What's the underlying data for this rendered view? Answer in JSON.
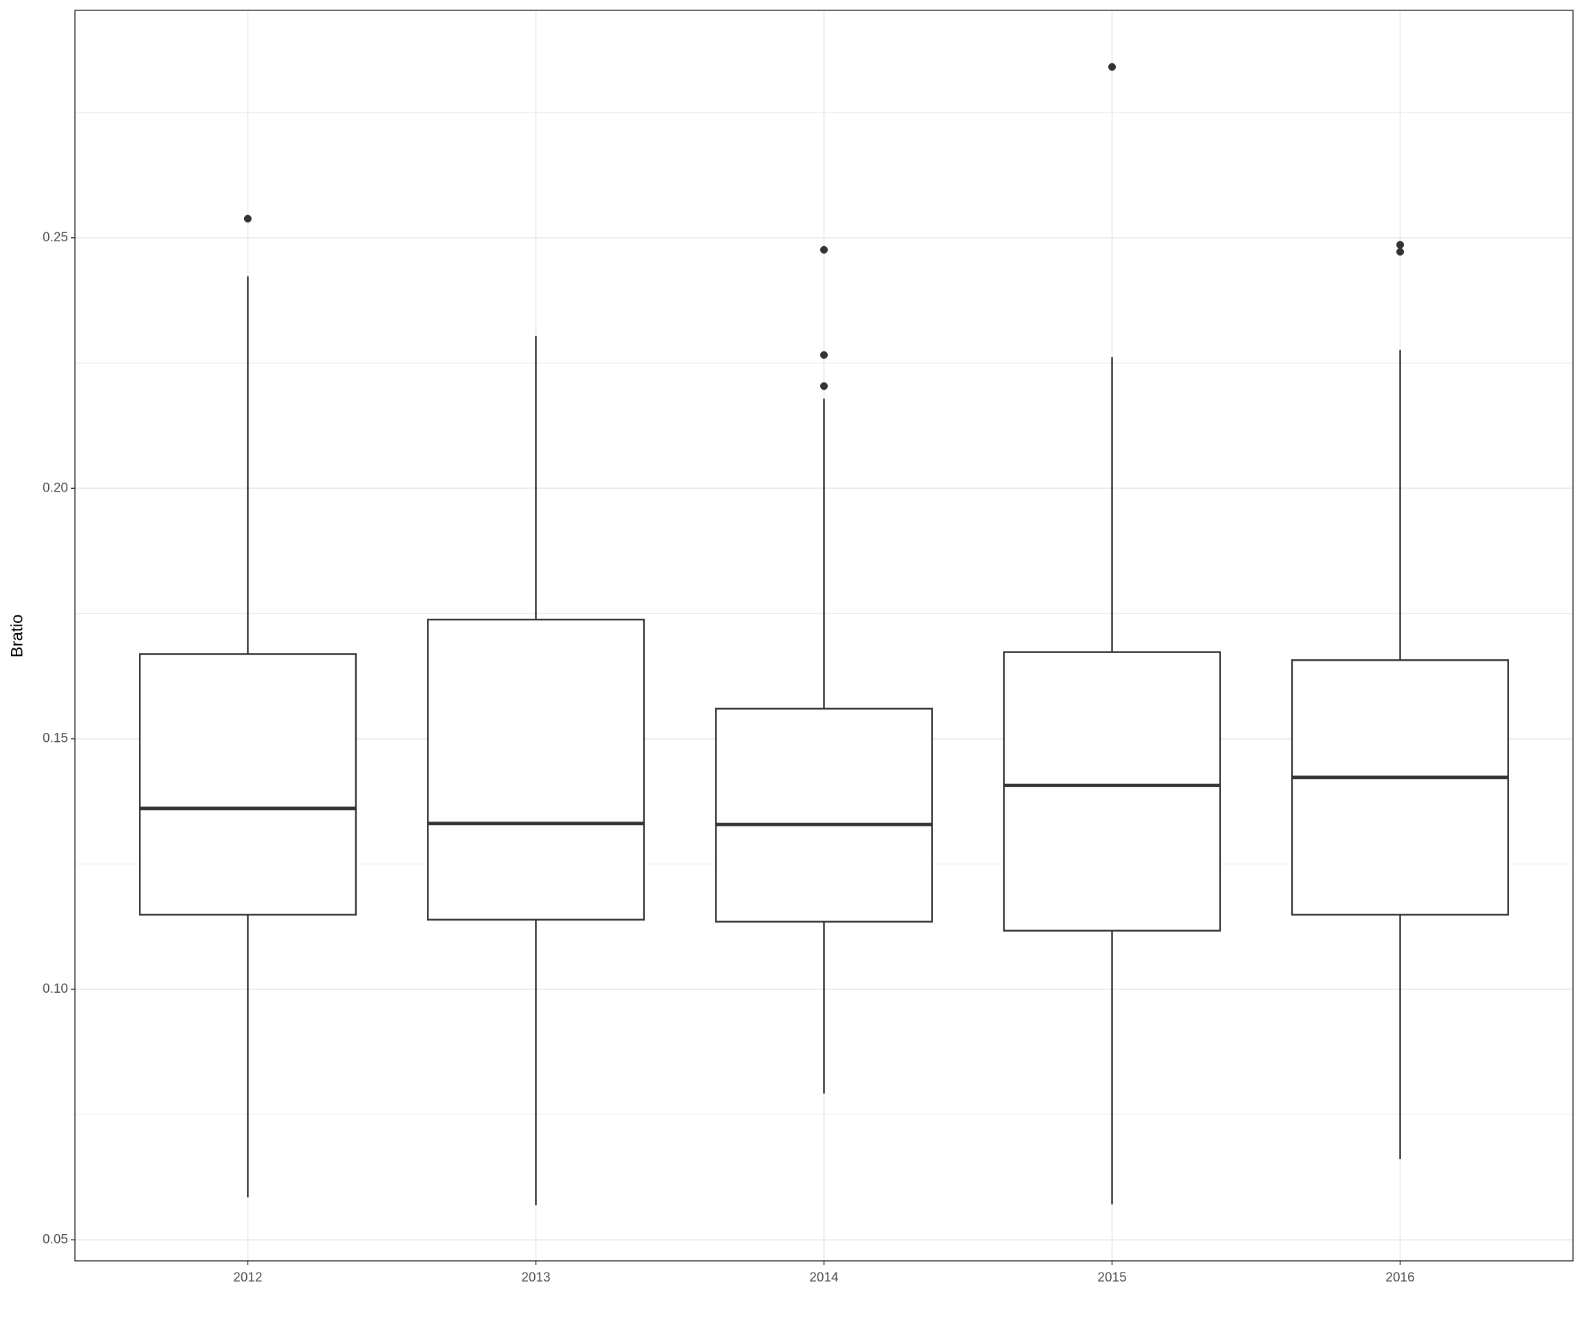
{
  "chart_data": {
    "type": "boxplot",
    "y_label": "Bratio",
    "categories": [
      "2012",
      "2013",
      "2014",
      "2015",
      "2016"
    ],
    "boxes": [
      {
        "min": 0.0585,
        "q1": 0.1149,
        "median": 0.1361,
        "q3": 0.1669,
        "max": 0.2423,
        "outliers": [
          0.2538
        ]
      },
      {
        "min": 0.0569,
        "q1": 0.1139,
        "median": 0.1331,
        "q3": 0.1738,
        "max": 0.2304,
        "outliers": []
      },
      {
        "min": 0.0792,
        "q1": 0.1135,
        "median": 0.1329,
        "q3": 0.156,
        "max": 0.2179,
        "outliers": [
          0.2476,
          0.2266,
          0.2204
        ]
      },
      {
        "min": 0.0571,
        "q1": 0.1117,
        "median": 0.1407,
        "q3": 0.1673,
        "max": 0.2262,
        "outliers": [
          0.2841
        ]
      },
      {
        "min": 0.0661,
        "q1": 0.1149,
        "median": 0.1423,
        "q3": 0.1657,
        "max": 0.2276,
        "outliers": [
          0.2486,
          0.2472
        ]
      }
    ],
    "color": "#333333",
    "ylim": [
      0.0458,
      0.2954
    ],
    "yticks": [
      {
        "value": 0.05,
        "label": "0.05"
      },
      {
        "value": 0.1,
        "label": "0.10"
      },
      {
        "value": 0.15,
        "label": "0.15"
      },
      {
        "value": 0.2,
        "label": "0.20"
      },
      {
        "value": 0.25,
        "label": "0.25"
      }
    ],
    "grid": true
  }
}
